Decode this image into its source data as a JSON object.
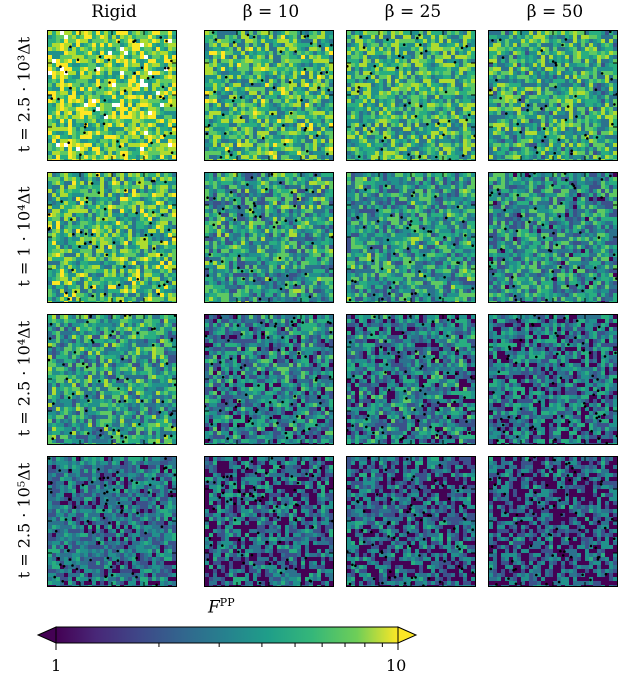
{
  "columns": [
    "Rigid",
    "β = 10",
    "β = 25",
    "β = 50"
  ],
  "rows": [
    "t = 2.5 · 10³Δt",
    "t = 1 · 10⁴Δt",
    "t = 2.5 · 10⁴Δt",
    "t = 2.5 · 10⁵Δt"
  ],
  "colorbar": {
    "label": "F^PP",
    "label_main": "F",
    "label_sup": "PP",
    "min_label": "1",
    "max_label": "10",
    "scale": "log",
    "colormap": "viridis",
    "range": [
      1,
      10
    ]
  },
  "colors": {
    "low": "#440154",
    "mid": "#21918c",
    "high": "#fde725"
  }
}
